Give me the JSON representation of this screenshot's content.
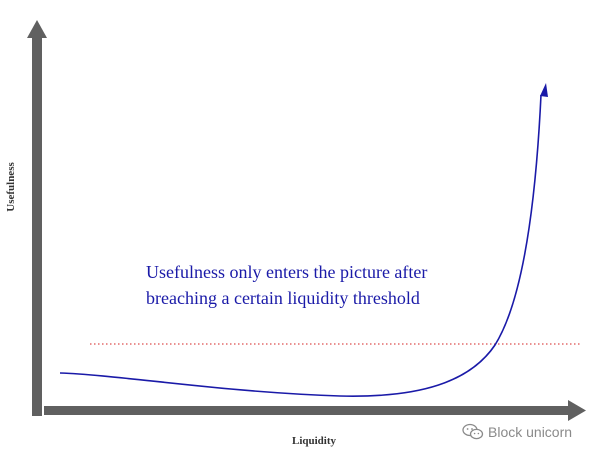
{
  "axes": {
    "x_label": "Liquidity",
    "y_label": "Usefulness"
  },
  "annotation": {
    "line1": "Usefulness only enters the picture after",
    "line2": "breaching a certain liquidity threshold"
  },
  "watermark": {
    "text": "Block unicorn",
    "icon": "wechat-icon"
  },
  "colors": {
    "axis": "#606060",
    "curve": "#1a1aa8",
    "threshold": "#d42020",
    "annotation_text": "#1a1aa8",
    "axis_label": "#333333",
    "watermark": "#8a8a8a"
  }
}
